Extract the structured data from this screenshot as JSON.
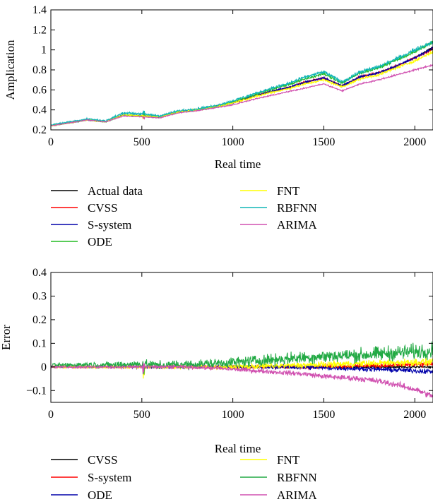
{
  "chart_data": [
    {
      "type": "line",
      "title": "",
      "xlabel": "Real time",
      "ylabel": "Amplication",
      "xlim": [
        0,
        2100
      ],
      "ylim": [
        0.2,
        1.4
      ],
      "xticks": [
        0,
        500,
        1000,
        1500,
        2000
      ],
      "yticks": [
        0.2,
        0.4,
        0.6,
        0.8,
        1,
        1.2,
        1.4
      ],
      "ytick_labels": [
        "0.2",
        "0.4",
        "0.6",
        "0.8",
        "1",
        "1.2",
        "1.4"
      ],
      "legend_position": "below",
      "x": [
        0,
        100,
        200,
        300,
        400,
        500,
        600,
        700,
        800,
        900,
        1000,
        1100,
        1200,
        1300,
        1400,
        1500,
        1600,
        1700,
        1800,
        1900,
        2000,
        2100
      ],
      "series": [
        {
          "name": "Actual data",
          "color": "#000000",
          "values": [
            0.24,
            0.27,
            0.3,
            0.28,
            0.35,
            0.34,
            0.33,
            0.38,
            0.4,
            0.43,
            0.47,
            0.53,
            0.58,
            0.62,
            0.68,
            0.72,
            0.64,
            0.73,
            0.77,
            0.84,
            0.92,
            1.03
          ]
        },
        {
          "name": "CVSS",
          "color": "#ff0000",
          "values": [
            0.24,
            0.27,
            0.3,
            0.28,
            0.35,
            0.34,
            0.33,
            0.38,
            0.4,
            0.43,
            0.47,
            0.53,
            0.58,
            0.62,
            0.68,
            0.72,
            0.64,
            0.73,
            0.77,
            0.84,
            0.92,
            1.01
          ]
        },
        {
          "name": "S-system",
          "color": "#0000aa",
          "values": [
            0.24,
            0.27,
            0.3,
            0.28,
            0.35,
            0.34,
            0.33,
            0.38,
            0.4,
            0.43,
            0.47,
            0.53,
            0.58,
            0.62,
            0.68,
            0.72,
            0.64,
            0.73,
            0.77,
            0.84,
            0.92,
            1.02
          ]
        },
        {
          "name": "ODE",
          "color": "#22bb22",
          "values": [
            0.24,
            0.27,
            0.3,
            0.28,
            0.35,
            0.34,
            0.33,
            0.38,
            0.4,
            0.43,
            0.48,
            0.54,
            0.6,
            0.65,
            0.71,
            0.76,
            0.67,
            0.77,
            0.82,
            0.9,
            0.98,
            1.08
          ]
        },
        {
          "name": "FNT",
          "color": "#ffff00",
          "values": [
            0.24,
            0.27,
            0.3,
            0.28,
            0.35,
            0.34,
            0.33,
            0.38,
            0.4,
            0.43,
            0.47,
            0.52,
            0.57,
            0.61,
            0.66,
            0.7,
            0.63,
            0.71,
            0.75,
            0.82,
            0.89,
            0.98
          ]
        },
        {
          "name": "RBFNN",
          "color": "#10b5b5",
          "values": [
            0.25,
            0.28,
            0.31,
            0.29,
            0.37,
            0.36,
            0.34,
            0.39,
            0.41,
            0.44,
            0.49,
            0.55,
            0.61,
            0.66,
            0.73,
            0.78,
            0.68,
            0.78,
            0.83,
            0.91,
            1.0,
            1.08
          ]
        },
        {
          "name": "ARIMA",
          "color": "#d050b0",
          "values": [
            0.24,
            0.27,
            0.3,
            0.28,
            0.34,
            0.33,
            0.32,
            0.37,
            0.39,
            0.42,
            0.45,
            0.5,
            0.54,
            0.58,
            0.62,
            0.66,
            0.59,
            0.66,
            0.7,
            0.75,
            0.8,
            0.85
          ]
        }
      ]
    },
    {
      "type": "line",
      "title": "",
      "xlabel": "Real time",
      "ylabel": "Error",
      "xlim": [
        0,
        2100
      ],
      "ylim": [
        -0.15,
        0.4
      ],
      "xticks": [
        0,
        500,
        1000,
        1500,
        2000
      ],
      "yticks": [
        -0.1,
        0,
        0.1,
        0.2,
        0.3,
        0.4
      ],
      "ytick_labels": [
        "−0.1",
        "0",
        "0.1",
        "0.2",
        "0.3",
        "0.4"
      ],
      "legend_position": "below",
      "x": [
        0,
        100,
        200,
        300,
        400,
        500,
        600,
        700,
        800,
        900,
        1000,
        1100,
        1200,
        1300,
        1400,
        1500,
        1600,
        1700,
        1800,
        1900,
        2000,
        2100
      ],
      "series": [
        {
          "name": "CVSS",
          "color": "#000000",
          "values": [
            0,
            0,
            0,
            0,
            0,
            0,
            0,
            0,
            0,
            0,
            0,
            0,
            0,
            0,
            0,
            0,
            0,
            0,
            0,
            0,
            0,
            0
          ]
        },
        {
          "name": "S-system",
          "color": "#ff0000",
          "values": [
            0,
            0,
            0,
            0,
            0,
            0,
            0,
            0,
            0,
            0,
            0,
            0,
            0,
            0,
            0,
            0.002,
            0.003,
            0.005,
            0.006,
            0.008,
            0.01,
            0.012
          ]
        },
        {
          "name": "ODE",
          "color": "#0000aa",
          "values": [
            0,
            0,
            0,
            0,
            0,
            0,
            0,
            0,
            0,
            0,
            0,
            0,
            0,
            0,
            -0.002,
            -0.004,
            -0.006,
            -0.008,
            -0.01,
            -0.013,
            -0.016,
            -0.02
          ]
        },
        {
          "name": "FNT",
          "color": "#ffff00",
          "values": [
            0,
            0,
            0,
            0,
            0,
            0,
            0,
            0,
            0,
            0,
            0,
            0.002,
            0.004,
            0.006,
            0.008,
            0.01,
            0.012,
            0.014,
            0.016,
            0.018,
            0.02,
            0.022
          ]
        },
        {
          "name": "RBFNN",
          "color": "#22aa44",
          "values": [
            0.005,
            0.008,
            0.01,
            0.008,
            0.01,
            0.012,
            0.008,
            0.01,
            0.012,
            0.015,
            0.02,
            0.025,
            0.03,
            0.035,
            0.04,
            0.045,
            0.048,
            0.05,
            0.055,
            0.06,
            0.065,
            0.07
          ]
        },
        {
          "name": "ARIMA",
          "color": "#d050b0",
          "values": [
            0,
            0,
            0,
            0,
            0,
            0,
            0,
            0,
            -0.002,
            -0.005,
            -0.01,
            -0.015,
            -0.02,
            -0.025,
            -0.03,
            -0.04,
            -0.045,
            -0.05,
            -0.06,
            -0.075,
            -0.095,
            -0.125
          ]
        }
      ]
    }
  ]
}
